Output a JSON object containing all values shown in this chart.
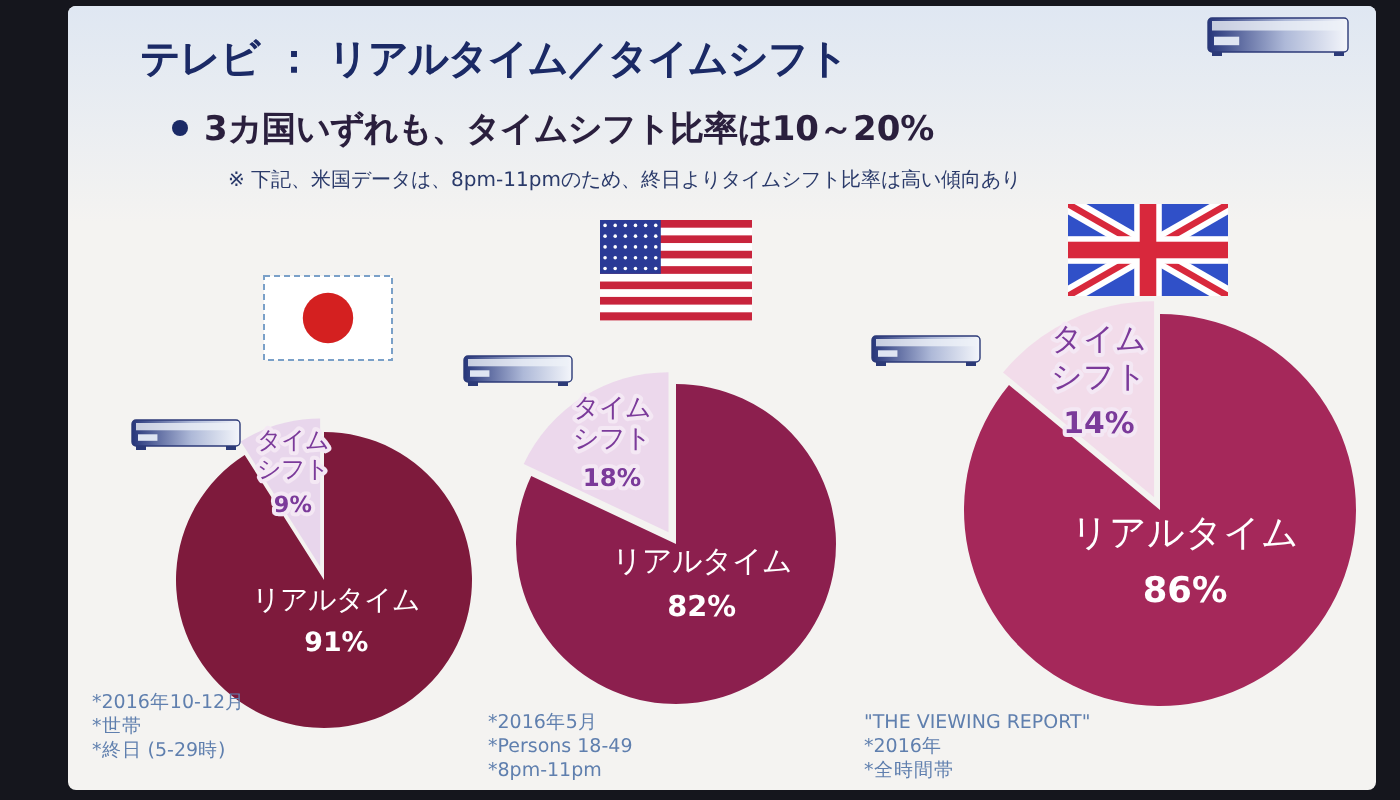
{
  "chart_data": [
    {
      "type": "other",
      "title": "テレビ ： リアルタイム／タイムシフト",
      "subtitle": "3カ国いずれも、タイムシフト比率は10～20%",
      "annotations": [
        "※ 下記、米国データは、8pm-11pmのため、終日よりタイムシフト比率は高い傾向あり"
      ]
    },
    {
      "type": "pie",
      "categories": [
        "タイムシフト",
        "リアルタイム"
      ],
      "values": [
        9,
        91
      ],
      "colors": [
        "#e8d6ec",
        "#7e1a3c"
      ],
      "value_labels": [
        "9%",
        "91%"
      ],
      "annotations": [
        "*2016年10-12月",
        "*世帯",
        "*終日 (5-29時)"
      ]
    },
    {
      "type": "pie",
      "categories": [
        "タイムシフト",
        "リアルタイム"
      ],
      "values": [
        18,
        82
      ],
      "colors": [
        "#ecd8ec",
        "#8c1f4e"
      ],
      "value_labels": [
        "18%",
        "82%"
      ],
      "annotations": [
        "*2016年5月",
        "*Persons 18-49",
        "*8pm-11pm"
      ]
    },
    {
      "type": "pie",
      "categories": [
        "タイムシフト",
        "リアルタイム"
      ],
      "values": [
        14,
        86
      ],
      "colors": [
        "#f2dcea",
        "#a5285a"
      ],
      "value_labels": [
        "14%",
        "86%"
      ],
      "annotations": [
        "\"THE VIEWING REPORT\"",
        "*2016年",
        "*全時間帯"
      ]
    }
  ]
}
